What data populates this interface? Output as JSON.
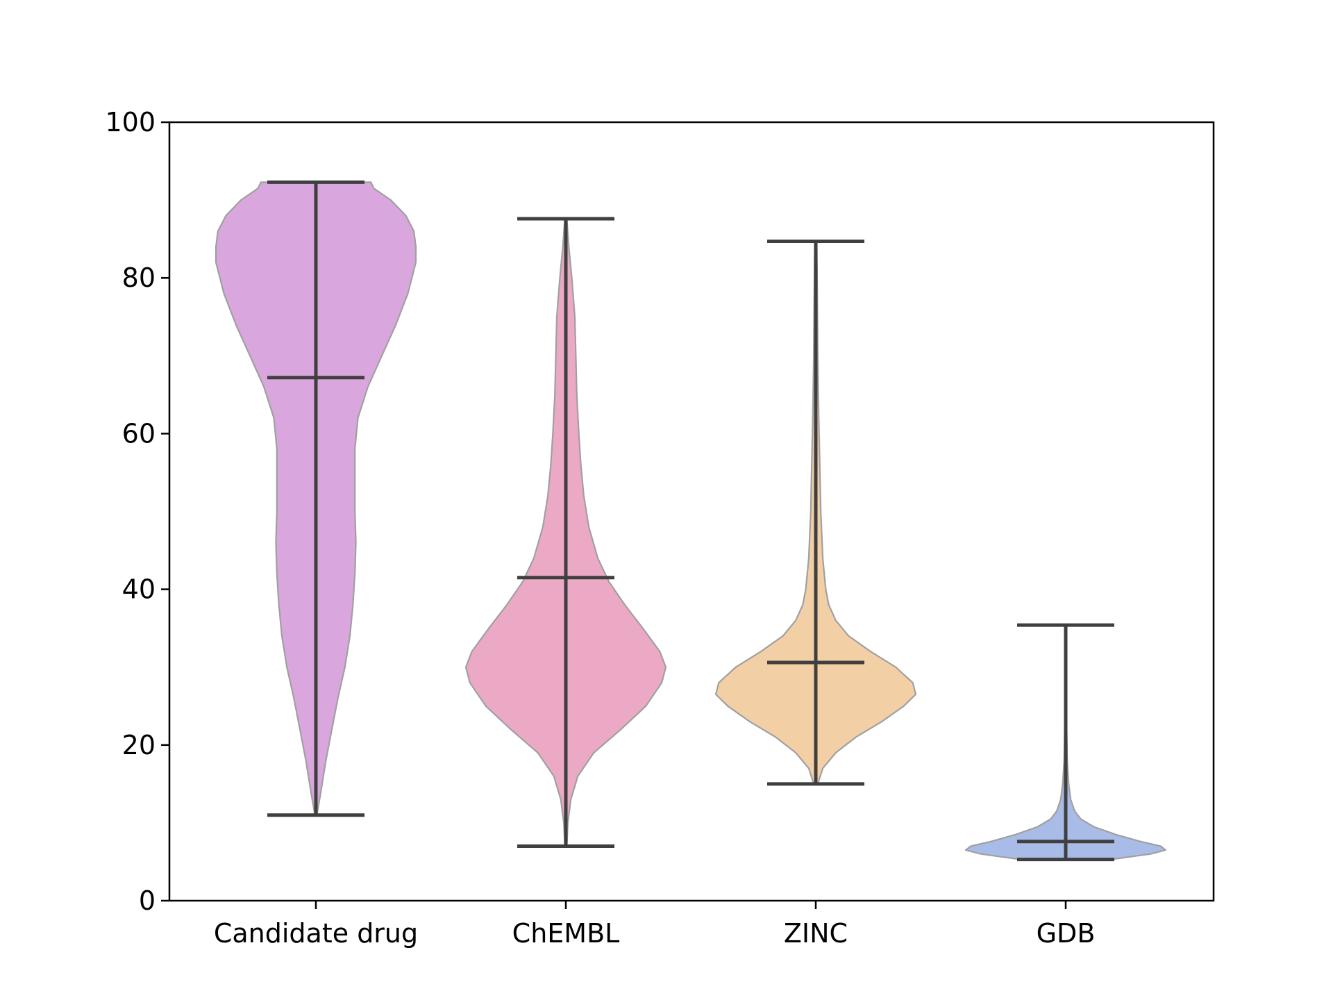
{
  "chart_data": {
    "type": "violin",
    "title": "",
    "xlabel": "",
    "ylabel": "",
    "ylim": [
      0,
      100
    ],
    "yticks": [
      "0",
      "20",
      "40",
      "60",
      "80",
      "100"
    ],
    "categories": [
      "Candidate drug",
      "ChEMBL",
      "ZINC",
      "GDB"
    ],
    "series": [
      {
        "category": "Candidate drug",
        "color": "#d9a6de",
        "min": 11,
        "max": 92.3,
        "median": 67.2,
        "density": [
          [
            11,
            0.01
          ],
          [
            14,
            0.05
          ],
          [
            18,
            0.1
          ],
          [
            22,
            0.16
          ],
          [
            26,
            0.22
          ],
          [
            30,
            0.29
          ],
          [
            34,
            0.34
          ],
          [
            38,
            0.37
          ],
          [
            42,
            0.39
          ],
          [
            46,
            0.4
          ],
          [
            50,
            0.39
          ],
          [
            54,
            0.39
          ],
          [
            58,
            0.39
          ],
          [
            62,
            0.42
          ],
          [
            66,
            0.52
          ],
          [
            70,
            0.66
          ],
          [
            74,
            0.8
          ],
          [
            78,
            0.92
          ],
          [
            82,
            1.0
          ],
          [
            84,
            1.0
          ],
          [
            86,
            0.98
          ],
          [
            88,
            0.9
          ],
          [
            90,
            0.75
          ],
          [
            91.5,
            0.58
          ],
          [
            92.3,
            0.55
          ]
        ]
      },
      {
        "category": "ChEMBL",
        "color": "#eca9c6",
        "min": 7,
        "max": 87.6,
        "median": 41.5,
        "density": [
          [
            7,
            0.01
          ],
          [
            10,
            0.02
          ],
          [
            13,
            0.05
          ],
          [
            16,
            0.12
          ],
          [
            19,
            0.28
          ],
          [
            22,
            0.55
          ],
          [
            25,
            0.8
          ],
          [
            28,
            0.96
          ],
          [
            30,
            1.0
          ],
          [
            32,
            0.94
          ],
          [
            35,
            0.77
          ],
          [
            38,
            0.59
          ],
          [
            41,
            0.43
          ],
          [
            44,
            0.32
          ],
          [
            48,
            0.23
          ],
          [
            52,
            0.18
          ],
          [
            56,
            0.15
          ],
          [
            60,
            0.13
          ],
          [
            65,
            0.11
          ],
          [
            70,
            0.1
          ],
          [
            75,
            0.09
          ],
          [
            80,
            0.06
          ],
          [
            84,
            0.03
          ],
          [
            87.6,
            0.01
          ]
        ]
      },
      {
        "category": "ZINC",
        "color": "#f3cfa6",
        "min": 15,
        "max": 84.7,
        "median": 30.6,
        "density": [
          [
            15,
            0.02
          ],
          [
            17,
            0.07
          ],
          [
            19,
            0.2
          ],
          [
            21,
            0.4
          ],
          [
            23,
            0.66
          ],
          [
            25,
            0.88
          ],
          [
            26.5,
            1.0
          ],
          [
            28,
            0.97
          ],
          [
            30,
            0.8
          ],
          [
            32,
            0.55
          ],
          [
            34,
            0.33
          ],
          [
            36,
            0.2
          ],
          [
            38,
            0.13
          ],
          [
            40,
            0.1
          ],
          [
            44,
            0.07
          ],
          [
            50,
            0.05
          ],
          [
            56,
            0.04
          ],
          [
            62,
            0.03
          ],
          [
            70,
            0.02
          ],
          [
            78,
            0.015
          ],
          [
            84.7,
            0.01
          ]
        ]
      },
      {
        "category": "GDB",
        "color": "#a9bbe7",
        "min": 5.3,
        "max": 35.4,
        "median": 7.6,
        "density": [
          [
            5.3,
            0.45
          ],
          [
            6,
            0.85
          ],
          [
            6.5,
            1.0
          ],
          [
            7,
            0.95
          ],
          [
            7.6,
            0.75
          ],
          [
            8.5,
            0.5
          ],
          [
            9.5,
            0.28
          ],
          [
            10.5,
            0.15
          ],
          [
            11.5,
            0.09
          ],
          [
            13,
            0.05
          ],
          [
            15,
            0.03
          ],
          [
            18,
            0.015
          ],
          [
            22,
            0.01
          ],
          [
            28,
            0.008
          ],
          [
            35.4,
            0.005
          ]
        ]
      }
    ]
  }
}
